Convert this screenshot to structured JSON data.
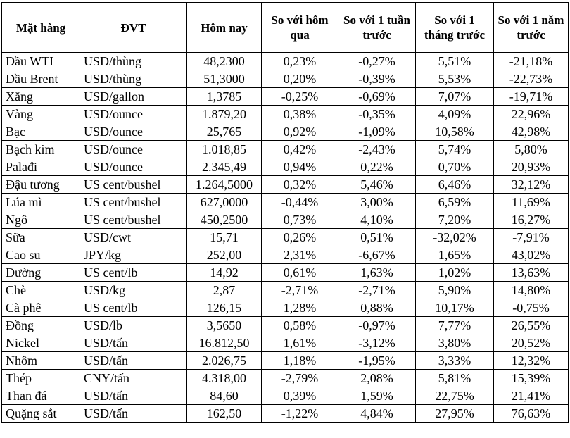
{
  "table": {
    "headers": [
      "Mặt hàng",
      "ĐVT",
      "Hôm nay",
      "So với hôm qua",
      "So với 1 tuần trước",
      "So với 1 tháng trước",
      "So với 1 năm trước"
    ],
    "rows": [
      [
        "Dầu WTI",
        "USD/thùng",
        "48,2300",
        "0,23%",
        "-0,27%",
        "5,51%",
        "-21,18%"
      ],
      [
        "Dầu Brent",
        "USD/thùng",
        "51,3000",
        "0,20%",
        "-0,39%",
        "5,53%",
        "-22,73%"
      ],
      [
        "Xăng",
        "USD/gallon",
        "1,3785",
        "-0,25%",
        "-0,69%",
        "7,07%",
        "-19,71%"
      ],
      [
        "Vàng",
        "USD/ounce",
        "1.879,20",
        "0,38%",
        "-0,35%",
        "4,09%",
        "22,96%"
      ],
      [
        "Bạc",
        "USD/ounce",
        "25,765",
        "0,92%",
        "-1,09%",
        "10,58%",
        "42,98%"
      ],
      [
        "Bạch kim",
        "USD/ounce",
        "1.018,85",
        "0,42%",
        "-2,43%",
        "5,74%",
        "5,80%"
      ],
      [
        "Palađi",
        "USD/ounce",
        "2.345,49",
        "0,94%",
        "0,22%",
        "0,70%",
        "20,93%"
      ],
      [
        "Đậu tương",
        "US cent/bushel",
        "1.264,5000",
        "0,32%",
        "5,46%",
        "6,46%",
        "32,12%"
      ],
      [
        "Lúa mì",
        "US cent/bushel",
        "627,0000",
        "-0,44%",
        "3,00%",
        "6,59%",
        "11,69%"
      ],
      [
        "Ngô",
        "US cent/bushel",
        "450,2500",
        "0,73%",
        "4,10%",
        "7,20%",
        "16,27%"
      ],
      [
        "Sữa",
        "USD/cwt",
        "15,71",
        "0,26%",
        "0,51%",
        "-32,02%",
        "-7,91%"
      ],
      [
        "Cao su",
        "JPY/kg",
        "252,00",
        "2,31%",
        "-6,67%",
        "1,65%",
        "43,02%"
      ],
      [
        "Đường",
        "US cent/lb",
        "14,92",
        "0,61%",
        "1,63%",
        "1,02%",
        "13,63%"
      ],
      [
        "Chè",
        "USD/kg",
        "2,87",
        "-2,71%",
        "-2,71%",
        "5,90%",
        "14,80%"
      ],
      [
        "Cà phê",
        "US cent/lb",
        "126,15",
        "1,28%",
        "0,88%",
        "10,17%",
        "-0,75%"
      ],
      [
        "Đồng",
        "USD/lb",
        "3,5650",
        "0,58%",
        "-0,97%",
        "7,77%",
        "26,55%"
      ],
      [
        "Nickel",
        "USD/tấn",
        "16.812,50",
        "1,61%",
        "-3,12%",
        "3,80%",
        "20,52%"
      ],
      [
        "Nhôm",
        "USD/tấn",
        "2.026,75",
        "1,18%",
        "-1,95%",
        "3,33%",
        "12,32%"
      ],
      [
        "Thép",
        "CNY/tấn",
        "4.318,00",
        "-2,79%",
        "2,08%",
        "5,81%",
        "15,39%"
      ],
      [
        "Than đá",
        "USD/tấn",
        "84,60",
        "0,39%",
        "1,59%",
        "22,75%",
        "21,41%"
      ],
      [
        "Quặng sắt",
        "USD/tấn",
        "162,50",
        "-1,22%",
        "4,84%",
        "27,95%",
        "76,63%"
      ]
    ]
  }
}
